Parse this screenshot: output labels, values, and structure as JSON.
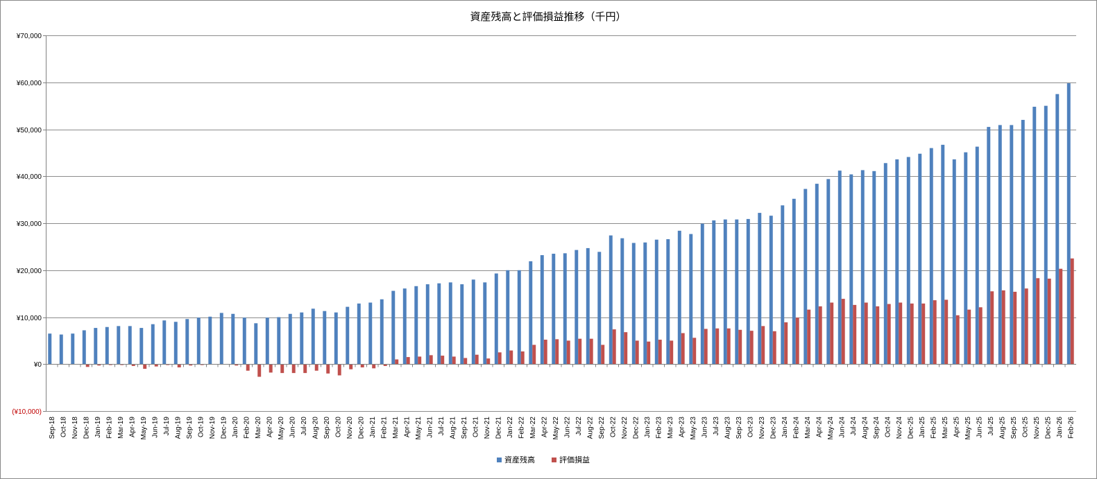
{
  "chart_data": {
    "type": "bar",
    "title": "資産残高と評価損益推移（千円）",
    "xlabel": "",
    "ylabel": "",
    "ylim": [
      -10000,
      70000
    ],
    "yticks": [
      -10000,
      0,
      10000,
      20000,
      30000,
      40000,
      50000,
      60000,
      70000
    ],
    "ytick_labels": [
      "(¥10,000)",
      "¥0",
      "¥10,000",
      "¥20,000",
      "¥30,000",
      "¥40,000",
      "¥50,000",
      "¥60,000",
      "¥70,000"
    ],
    "grid": true,
    "legend_position": "bottom",
    "colors": {
      "series1": "#4f81bd",
      "series2": "#c0504d",
      "negative_tick": "#c00000",
      "grid": "#8c8c8c"
    },
    "categories": [
      "Sep-18",
      "Oct-18",
      "Nov-18",
      "Dec-18",
      "Jan-19",
      "Feb-19",
      "Mar-19",
      "Apr-19",
      "May-19",
      "Jun-19",
      "Jul-19",
      "Aug-19",
      "Sep-19",
      "Oct-19",
      "Nov-19",
      "Dec-19",
      "Jan-20",
      "Feb-20",
      "Mar-20",
      "Apr-20",
      "May-20",
      "Jun-20",
      "Jul-20",
      "Aug-20",
      "Sep-20",
      "Oct-20",
      "Nov-20",
      "Dec-20",
      "Jan-21",
      "Feb-21",
      "Mar-21",
      "Apr-21",
      "May-21",
      "Jun-21",
      "Jul-21",
      "Aug-21",
      "Sep-21",
      "Oct-21",
      "Nov-21",
      "Dec-21",
      "Jan-22",
      "Feb-22",
      "Mar-22",
      "Apr-22",
      "May-22",
      "Jun-22",
      "Jul-22",
      "Aug-22",
      "Sep-22",
      "Oct-22",
      "Nov-22",
      "Dec-22",
      "Jan-23",
      "Feb-23",
      "Mar-23",
      "Apr-23",
      "May-23",
      "Jun-23",
      "Jul-23",
      "Aug-23",
      "Sep-23",
      "Oct-23",
      "Nov-23",
      "Dec-23",
      "Jan-24",
      "Feb-24",
      "Mar-24",
      "Apr-24",
      "May-24",
      "Jun-24",
      "Jul-24",
      "Aug-24",
      "Sep-24",
      "Oct-24",
      "Nov-24",
      "Dec-25",
      "Jan-25",
      "Feb-25",
      "Mar-25",
      "Apr-25",
      "May-25",
      "Jun-25",
      "Jul-25",
      "Aug-25",
      "Sep-25",
      "Oct-25",
      "Nov-25",
      "Dec-25",
      "Jan-26",
      "Feb-26"
    ],
    "series": [
      {
        "name": "資産残高",
        "values": [
          6500,
          6300,
          6500,
          7200,
          7700,
          7900,
          8100,
          8100,
          7700,
          8500,
          9300,
          9000,
          9600,
          9900,
          10100,
          10900,
          10700,
          9900,
          8700,
          9900,
          10000,
          10700,
          11000,
          11800,
          11300,
          11000,
          12200,
          12900,
          13100,
          13800,
          15600,
          16100,
          16600,
          17000,
          17200,
          17400,
          17000,
          18000,
          17400,
          19300,
          20000,
          20000,
          21900,
          23200,
          23500,
          23600,
          24300,
          24700,
          23900,
          27400,
          26800,
          25800,
          25900,
          26500,
          26600,
          28400,
          27700,
          29900,
          30600,
          30800,
          30800,
          30900,
          32200,
          31600,
          33800,
          35200,
          37300,
          38400,
          39400,
          41200,
          40400,
          41300,
          41100,
          42800,
          43600,
          44100,
          44800,
          46000,
          46700,
          43600,
          45100,
          46300,
          50500,
          50900,
          50900,
          52000,
          54800,
          55000,
          57500,
          59800
        ]
      },
      {
        "name": "評価損益",
        "values": [
          0,
          0,
          0,
          -600,
          -300,
          -200,
          -200,
          -400,
          -1000,
          -500,
          -200,
          -700,
          -300,
          -200,
          -100,
          0,
          -300,
          -1400,
          -2700,
          -1800,
          -1900,
          -1900,
          -1900,
          -1400,
          -2000,
          -2400,
          -1100,
          -700,
          -900,
          -400,
          1000,
          1500,
          1600,
          1900,
          1800,
          1600,
          1300,
          2000,
          1200,
          2500,
          2900,
          2700,
          4100,
          5200,
          5300,
          5000,
          5400,
          5400,
          4100,
          7400,
          6800,
          5000,
          4800,
          5200,
          5000,
          6600,
          5600,
          7500,
          7600,
          7600,
          7300,
          7100,
          8100,
          7000,
          8900,
          9900,
          11600,
          12300,
          13100,
          13900,
          12600,
          13100,
          12300,
          12800,
          13100,
          12900,
          12900,
          13600,
          13700,
          10400,
          11600,
          12100,
          15500,
          15700,
          15400,
          16100,
          18300,
          18200,
          20300,
          22500
        ]
      }
    ]
  }
}
